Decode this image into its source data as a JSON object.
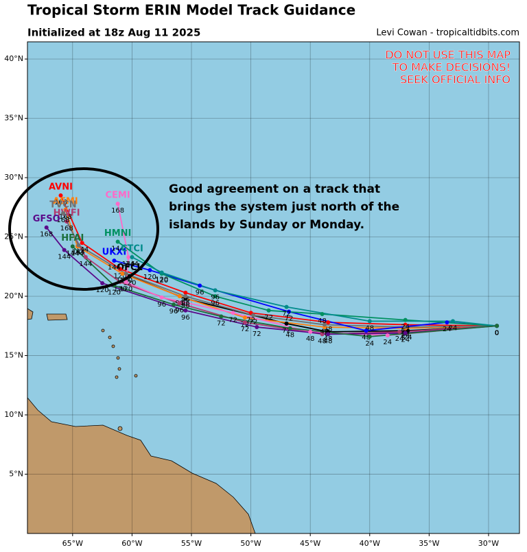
{
  "header": {
    "title": "Tropical Storm ERIN Model Track Guidance",
    "subtitle": "Initialized at 18z Aug 11 2025",
    "credit": "Levi Cowan - tropicaltidbits.com"
  },
  "warning": [
    "DO NOT USE THIS MAP",
    "TO MAKE DECISIONS!",
    "SEEK OFFICIAL INFO"
  ],
  "annotation": [
    "Good agreement on a track that",
    "brings the system just north of the",
    "islands by Sunday or Monday."
  ],
  "map": {
    "lon_range": [
      -68.8,
      -27.4
    ],
    "lat_range": [
      0,
      41.45
    ],
    "lon_ticks": [
      {
        "value": -65,
        "label": "65°W"
      },
      {
        "value": -60,
        "label": "60°W"
      },
      {
        "value": -55,
        "label": "55°W"
      },
      {
        "value": -50,
        "label": "50°W"
      },
      {
        "value": -45,
        "label": "45°W"
      },
      {
        "value": -40,
        "label": "40°W"
      },
      {
        "value": -35,
        "label": "35°W"
      },
      {
        "value": -30,
        "label": "30°W"
      }
    ],
    "lat_ticks": [
      {
        "value": 5,
        "label": "5°N"
      },
      {
        "value": 10,
        "label": "10°N"
      },
      {
        "value": 15,
        "label": "15°N"
      },
      {
        "value": 20,
        "label": "20°N"
      },
      {
        "value": 25,
        "label": "25°N"
      },
      {
        "value": 30,
        "label": "30°N"
      },
      {
        "value": 35,
        "label": "35°N"
      },
      {
        "value": 40,
        "label": "40°N"
      }
    ]
  },
  "tracks": [
    {
      "name": "OFCL",
      "color": "#000000",
      "lon": [
        -29.3,
        -36.8,
        -43.5,
        -47,
        -55.5,
        -60.2
      ],
      "lat": [
        17.5,
        17.1,
        17.0,
        17.7,
        19.8,
        21.7
      ],
      "hours": [
        0,
        24,
        48,
        72,
        96,
        120
      ]
    },
    {
      "name": "AVNI",
      "color": "#ff0000",
      "lon": [
        -29.3,
        -37,
        -43.5,
        -50,
        -55.5,
        -61,
        -64.2,
        -66
      ],
      "lat": [
        17.5,
        17.6,
        17.8,
        18.6,
        20.3,
        22.3,
        24.5,
        28.5
      ],
      "hours": [
        0,
        24,
        48,
        72,
        96,
        120,
        144,
        168
      ]
    },
    {
      "name": "AEMI",
      "color": "#ff7f0e",
      "lon": [
        -29.3,
        -37,
        -43.8,
        -50.5,
        -56,
        -60.8,
        -64.6,
        -65.6
      ],
      "lat": [
        17.5,
        17.3,
        17.4,
        18.2,
        20.0,
        21.9,
        24.2,
        27.3
      ],
      "hours": [
        0,
        24,
        48,
        72,
        96,
        120,
        144,
        168
      ]
    },
    {
      "name": "HWFI",
      "color": "#b03a6e",
      "lon": [
        -29.3,
        -37.5,
        -44,
        -50.5,
        -56,
        -61,
        -63.9,
        -65.5
      ],
      "lat": [
        17.5,
        17.0,
        16.8,
        17.8,
        19.4,
        21.2,
        23.3,
        26.3
      ],
      "hours": [
        0,
        24,
        48,
        72,
        96,
        120,
        144,
        168
      ]
    },
    {
      "name": "TVCN",
      "color": "#707070",
      "lon": [
        -29.3,
        -37,
        -43.8,
        -49.8,
        -55.5,
        -60.5,
        -64.5,
        -65.8
      ],
      "lat": [
        17.5,
        17.4,
        17.6,
        18.4,
        20.0,
        21.9,
        24.3,
        27.0
      ],
      "hours": [
        0,
        24,
        48,
        72,
        96,
        120,
        144,
        168
      ]
    },
    {
      "name": "UKXI",
      "color": "#0000ff",
      "lon": [
        -29.3,
        -33.5,
        -40.3,
        -46.8,
        -54.3,
        -58.5,
        -61.5
      ],
      "lat": [
        17.5,
        17.8,
        17.1,
        18.7,
        20.9,
        22.2,
        23.0
      ],
      "hours": [
        0,
        24,
        48,
        72,
        96,
        120,
        144
      ]
    },
    {
      "name": "CEMI",
      "color": "#ff69c8",
      "lon": [
        -29.3,
        -38.5,
        -45,
        -51.5,
        -57.5,
        -60.5,
        -60.3,
        -61.2
      ],
      "lat": [
        17.5,
        16.7,
        17.0,
        18.6,
        19.9,
        21.2,
        23.3,
        27.8
      ],
      "hours": [
        0,
        24,
        48,
        72,
        96,
        120,
        144,
        168
      ]
    },
    {
      "name": "HMNI",
      "color": "#009060",
      "lon": [
        -29.3,
        -37,
        -44,
        -48.5,
        -53,
        -57.5,
        -61.2
      ],
      "lat": [
        17.5,
        18.0,
        18.5,
        18.8,
        20.0,
        21.9,
        24.6
      ],
      "hours": [
        0,
        24,
        48,
        72,
        96,
        120,
        144
      ]
    },
    {
      "name": "CTCI",
      "color": "#008b8b",
      "lon": [
        -29.3,
        -33,
        -40,
        -47,
        -53,
        -57.5,
        -60
      ],
      "lat": [
        17.5,
        17.9,
        17.9,
        19.1,
        20.5,
        22.0,
        23.3
      ],
      "hours": [
        0,
        24,
        48,
        72,
        96,
        120,
        144
      ]
    },
    {
      "name": "GFSO",
      "color": "#5a0a8a",
      "lon": [
        -29.3,
        -37,
        -43.5,
        -49.5,
        -55.5,
        -62.5,
        -65.7,
        -67.2
      ],
      "lat": [
        17.5,
        16.9,
        16.8,
        17.4,
        18.8,
        21.1,
        23.9,
        25.8
      ],
      "hours": [
        0,
        24,
        48,
        72,
        96,
        120,
        144,
        168
      ]
    },
    {
      "name": "HFAI",
      "color": "#1b6e3a",
      "lon": [
        -29.3,
        -40,
        -46.7,
        -52.5,
        -56.5,
        -61.5,
        -65
      ],
      "lat": [
        17.5,
        16.6,
        17.3,
        18.3,
        19.3,
        20.9,
        24.2
      ],
      "hours": [
        0,
        24,
        48,
        72,
        96,
        120,
        144
      ]
    }
  ]
}
